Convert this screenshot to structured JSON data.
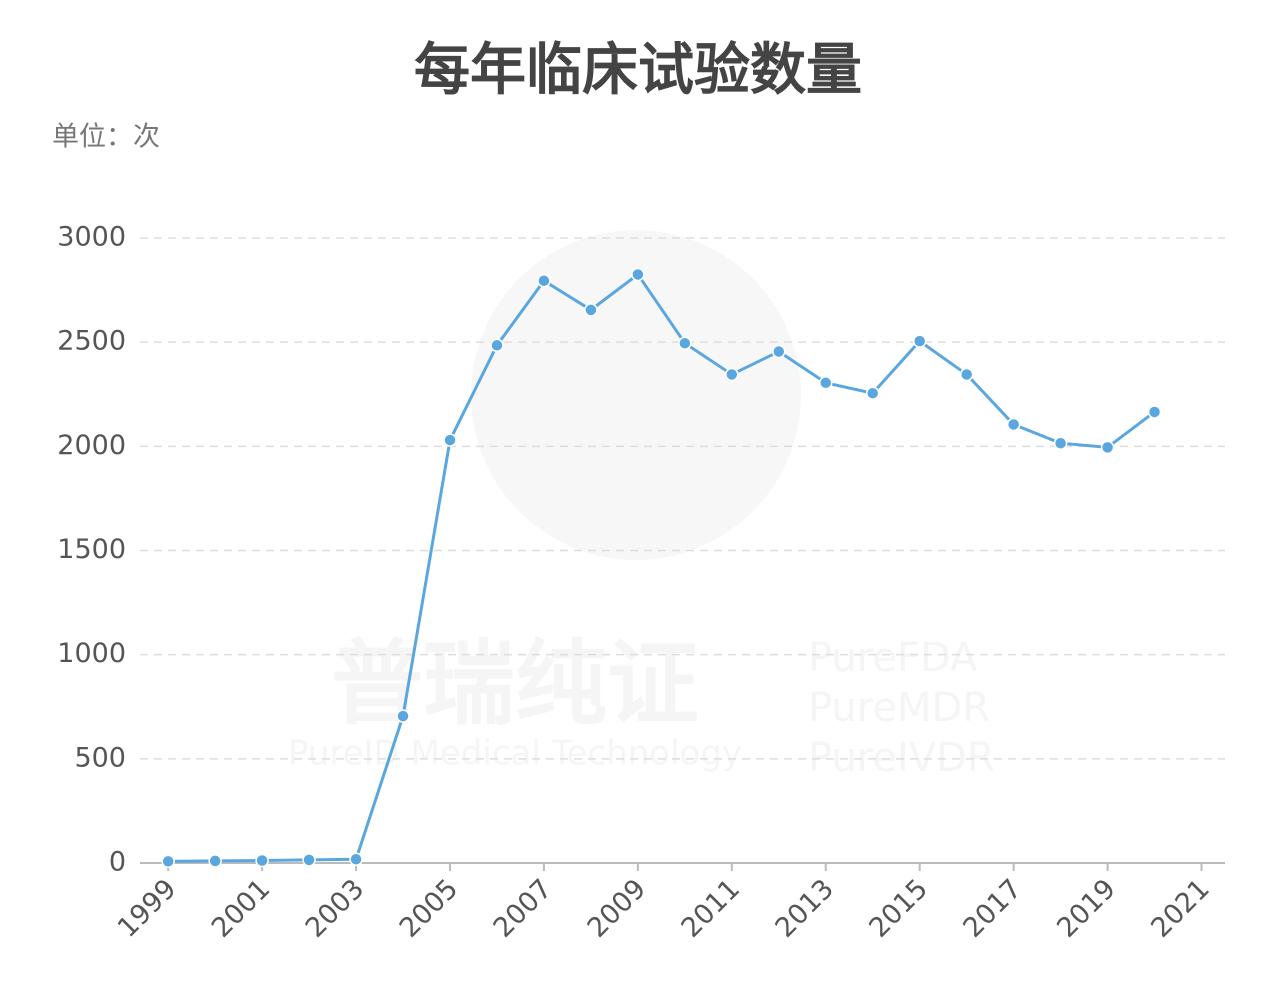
{
  "chart_data": {
    "type": "line",
    "title": "每年临床试验数量",
    "unit_label": "单位：次",
    "watermark": [
      "普瑞纯证",
      "PureID Medical Technology",
      "PureFDA",
      "PureMDR",
      "PureIVDR"
    ],
    "x": [
      1999,
      2000,
      2001,
      2002,
      2003,
      2004,
      2005,
      2006,
      2007,
      2008,
      2009,
      2010,
      2011,
      2012,
      2013,
      2014,
      2015,
      2016,
      2017,
      2018,
      2019,
      2020
    ],
    "values": [
      8,
      10,
      12,
      15,
      18,
      705,
      2030,
      2485,
      2795,
      2655,
      2825,
      2495,
      2345,
      2455,
      2305,
      2255,
      2505,
      2345,
      2105,
      2015,
      1995,
      2165
    ],
    "color": "#5aa7e0",
    "xlim": [
      1998.4,
      2021.5
    ],
    "xticks": [
      1999,
      2001,
      2003,
      2005,
      2007,
      2009,
      2011,
      2013,
      2015,
      2017,
      2019,
      2021
    ],
    "ylim": [
      0,
      3000
    ],
    "yticks": [
      0,
      500,
      1000,
      1500,
      2000,
      2500,
      3000
    ],
    "grid": true
  }
}
